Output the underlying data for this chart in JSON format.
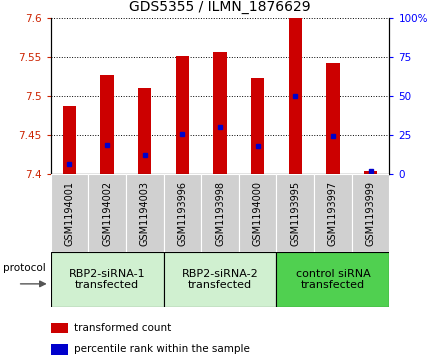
{
  "title": "GDS5355 / ILMN_1876629",
  "samples": [
    "GSM1194001",
    "GSM1194002",
    "GSM1194003",
    "GSM1193996",
    "GSM1193998",
    "GSM1194000",
    "GSM1193995",
    "GSM1193997",
    "GSM1193999"
  ],
  "red_values": [
    7.487,
    7.527,
    7.51,
    7.551,
    7.557,
    7.523,
    7.6,
    7.542,
    7.404
  ],
  "blue_values_left": [
    7.413,
    7.437,
    7.425,
    7.452,
    7.46,
    7.436,
    7.5,
    7.449,
    7.404
  ],
  "ylim_left": [
    7.4,
    7.6
  ],
  "ylim_right": [
    0,
    100
  ],
  "yticks_left": [
    7.4,
    7.45,
    7.5,
    7.55,
    7.6
  ],
  "yticks_right": [
    0,
    25,
    50,
    75,
    100
  ],
  "ytick_labels_left": [
    "7.4",
    "7.45",
    "7.5",
    "7.55",
    "7.6"
  ],
  "ytick_labels_right": [
    "0",
    "25",
    "50",
    "75",
    "100%"
  ],
  "groups": [
    {
      "label": "RBP2-siRNA-1\ntransfected",
      "start": 0,
      "end": 3,
      "color": "#d0f0d0"
    },
    {
      "label": "RBP2-siRNA-2\ntransfected",
      "start": 3,
      "end": 6,
      "color": "#d0f0d0"
    },
    {
      "label": "control siRNA\ntransfected",
      "start": 6,
      "end": 9,
      "color": "#50d050"
    }
  ],
  "bar_color": "#cc0000",
  "dot_color": "#0000cc",
  "bar_width": 0.35,
  "legend_red": "transformed count",
  "legend_blue": "percentile rank within the sample",
  "protocol_label": "protocol",
  "sample_box_color": "#d0d0d0",
  "title_fontsize": 10,
  "tick_fontsize": 7.5,
  "label_fontsize": 7,
  "group_fontsize": 8,
  "legend_fontsize": 7.5
}
